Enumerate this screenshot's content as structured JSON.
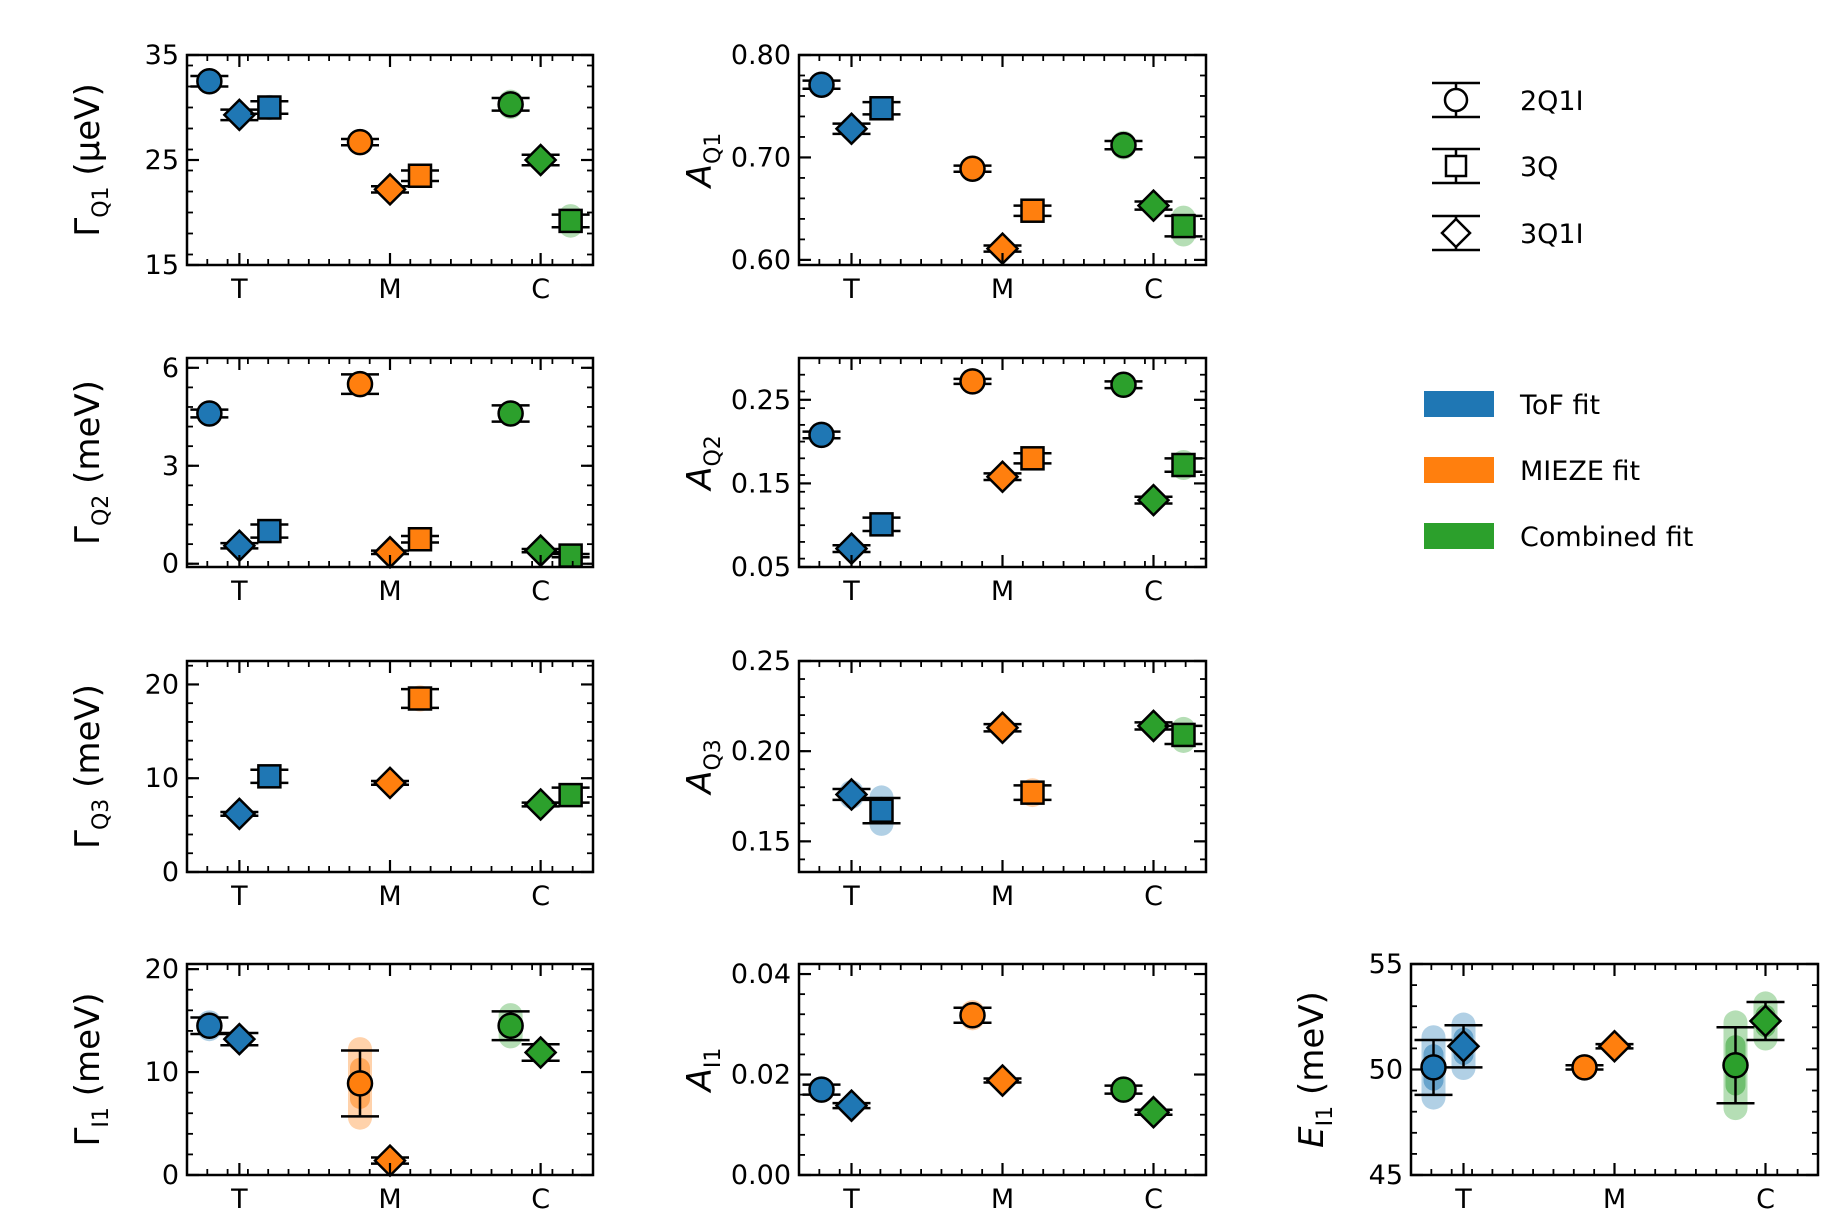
{
  "legend": {
    "markers": [
      {
        "label": "2Q1I",
        "shape": "circle"
      },
      {
        "label": "3Q",
        "shape": "square"
      },
      {
        "label": "3Q1I",
        "shape": "diamond"
      }
    ],
    "fits": [
      {
        "label": "ToF fit",
        "color": "#1f77b4"
      },
      {
        "label": "MIEZE fit",
        "color": "#ff7f0e"
      },
      {
        "label": "Combined fit",
        "color": "#2ca02c"
      }
    ]
  },
  "colors": {
    "T": "#1f77b4",
    "M": "#ff7f0e",
    "C": "#2ca02c"
  },
  "chart_data": [
    {
      "id": "gQ1",
      "type": "scatter",
      "ylabel_main": "Γ",
      "ylabel_sub": "Q1",
      "ylabel_unit": " (μeV)",
      "italic": false,
      "ylim": [
        15,
        35
      ],
      "yticks": [
        15,
        25,
        35
      ],
      "ytick_labels": [
        "15",
        "25",
        "35"
      ],
      "categories": [
        "T",
        "M",
        "C"
      ],
      "points": [
        {
          "cat": "T",
          "shape": "circle",
          "value": 32.5,
          "err": 0.5,
          "spread": 1.2
        },
        {
          "cat": "T",
          "shape": "diamond",
          "value": 29.3,
          "err": 0.5,
          "spread": 1.0
        },
        {
          "cat": "T",
          "shape": "square",
          "value": 30.0,
          "err": 0.6,
          "spread": 1.2
        },
        {
          "cat": "M",
          "shape": "circle",
          "value": 26.7,
          "err": 0.3,
          "spread": 0.8
        },
        {
          "cat": "M",
          "shape": "diamond",
          "value": 22.2,
          "err": 0.3,
          "spread": 0.8
        },
        {
          "cat": "M",
          "shape": "square",
          "value": 23.5,
          "err": 0.5,
          "spread": 0.8
        },
        {
          "cat": "C",
          "shape": "circle",
          "value": 30.3,
          "err": 0.6,
          "spread": 1.4
        },
        {
          "cat": "C",
          "shape": "diamond",
          "value": 25.0,
          "err": 0.5,
          "spread": 1.0
        },
        {
          "cat": "C",
          "shape": "square",
          "value": 19.2,
          "err": 0.6,
          "spread": 1.6
        }
      ]
    },
    {
      "id": "aQ1",
      "type": "scatter",
      "ylabel_main": "A",
      "ylabel_sub": "Q1",
      "ylabel_unit": "",
      "italic": true,
      "ylim": [
        0.595,
        0.8
      ],
      "yticks": [
        0.6,
        0.7,
        0.8
      ],
      "ytick_labels": [
        "0.60",
        "0.70",
        "0.80"
      ],
      "categories": [
        "T",
        "M",
        "C"
      ],
      "points": [
        {
          "cat": "T",
          "shape": "circle",
          "value": 0.771,
          "err": 0.004,
          "spread": 0.01
        },
        {
          "cat": "T",
          "shape": "diamond",
          "value": 0.728,
          "err": 0.005,
          "spread": 0.012
        },
        {
          "cat": "T",
          "shape": "square",
          "value": 0.748,
          "err": 0.006,
          "spread": 0.012
        },
        {
          "cat": "M",
          "shape": "circle",
          "value": 0.689,
          "err": 0.003,
          "spread": 0.008
        },
        {
          "cat": "M",
          "shape": "diamond",
          "value": 0.611,
          "err": 0.003,
          "spread": 0.008
        },
        {
          "cat": "M",
          "shape": "square",
          "value": 0.648,
          "err": 0.005,
          "spread": 0.01
        },
        {
          "cat": "C",
          "shape": "circle",
          "value": 0.712,
          "err": 0.004,
          "spread": 0.014
        },
        {
          "cat": "C",
          "shape": "diamond",
          "value": 0.653,
          "err": 0.004,
          "spread": 0.01
        },
        {
          "cat": "C",
          "shape": "square",
          "value": 0.633,
          "err": 0.01,
          "spread": 0.02
        }
      ]
    },
    {
      "id": "gQ2",
      "type": "scatter",
      "ylabel_main": "Γ",
      "ylabel_sub": "Q2",
      "ylabel_unit": " (meV)",
      "italic": false,
      "ylim": [
        -0.1,
        6.3
      ],
      "yticks": [
        0,
        3,
        6
      ],
      "ytick_labels": [
        "0",
        "3",
        "6"
      ],
      "categories": [
        "T",
        "M",
        "C"
      ],
      "points": [
        {
          "cat": "T",
          "shape": "circle",
          "value": 4.6,
          "err": 0.12,
          "spread": 0.3
        },
        {
          "cat": "T",
          "shape": "diamond",
          "value": 0.55,
          "err": 0.08,
          "spread": 0.15
        },
        {
          "cat": "T",
          "shape": "square",
          "value": 1.0,
          "err": 0.2,
          "spread": 0.3
        },
        {
          "cat": "M",
          "shape": "circle",
          "value": 5.5,
          "err": 0.3,
          "spread": 0.4
        },
        {
          "cat": "M",
          "shape": "diamond",
          "value": 0.35,
          "err": 0.05,
          "spread": 0.1
        },
        {
          "cat": "M",
          "shape": "square",
          "value": 0.75,
          "err": 0.1,
          "spread": 0.15
        },
        {
          "cat": "C",
          "shape": "circle",
          "value": 4.6,
          "err": 0.25,
          "spread": 0.4
        },
        {
          "cat": "C",
          "shape": "diamond",
          "value": 0.4,
          "err": 0.05,
          "spread": 0.1
        },
        {
          "cat": "C",
          "shape": "square",
          "value": 0.25,
          "err": 0.05,
          "spread": 0.1
        }
      ]
    },
    {
      "id": "aQ2",
      "type": "scatter",
      "ylabel_main": "A",
      "ylabel_sub": "Q2",
      "ylabel_unit": "",
      "italic": true,
      "ylim": [
        0.05,
        0.3
      ],
      "yticks": [
        0.05,
        0.15,
        0.25
      ],
      "ytick_labels": [
        "0.05",
        "0.15",
        "0.25"
      ],
      "categories": [
        "T",
        "M",
        "C"
      ],
      "points": [
        {
          "cat": "T",
          "shape": "circle",
          "value": 0.208,
          "err": 0.004,
          "spread": 0.008
        },
        {
          "cat": "T",
          "shape": "diamond",
          "value": 0.072,
          "err": 0.004,
          "spread": 0.008
        },
        {
          "cat": "T",
          "shape": "square",
          "value": 0.101,
          "err": 0.008,
          "spread": 0.012
        },
        {
          "cat": "M",
          "shape": "circle",
          "value": 0.272,
          "err": 0.003,
          "spread": 0.006
        },
        {
          "cat": "M",
          "shape": "diamond",
          "value": 0.158,
          "err": 0.004,
          "spread": 0.006
        },
        {
          "cat": "M",
          "shape": "square",
          "value": 0.18,
          "err": 0.006,
          "spread": 0.01
        },
        {
          "cat": "C",
          "shape": "circle",
          "value": 0.268,
          "err": 0.004,
          "spread": 0.01
        },
        {
          "cat": "C",
          "shape": "diamond",
          "value": 0.13,
          "err": 0.004,
          "spread": 0.01
        },
        {
          "cat": "C",
          "shape": "square",
          "value": 0.172,
          "err": 0.008,
          "spread": 0.018
        }
      ]
    },
    {
      "id": "gQ3",
      "type": "scatter",
      "ylabel_main": "Γ",
      "ylabel_sub": "Q3",
      "ylabel_unit": " (meV)",
      "italic": false,
      "ylim": [
        0,
        22.5
      ],
      "yticks": [
        0,
        10,
        20
      ],
      "ytick_labels": [
        "0",
        "10",
        "20"
      ],
      "categories": [
        "T",
        "M",
        "C"
      ],
      "points": [
        {
          "cat": "T",
          "shape": "diamond",
          "value": 6.2,
          "err": 0.2,
          "spread": 0.5
        },
        {
          "cat": "T",
          "shape": "square",
          "value": 10.2,
          "err": 0.7,
          "spread": 1.0
        },
        {
          "cat": "M",
          "shape": "diamond",
          "value": 9.5,
          "err": 0.2,
          "spread": 0.5
        },
        {
          "cat": "M",
          "shape": "square",
          "value": 18.5,
          "err": 1.0,
          "spread": 1.4
        },
        {
          "cat": "C",
          "shape": "diamond",
          "value": 7.2,
          "err": 0.2,
          "spread": 0.5
        },
        {
          "cat": "C",
          "shape": "square",
          "value": 8.2,
          "err": 0.8,
          "spread": 1.2
        }
      ]
    },
    {
      "id": "aQ3",
      "type": "scatter",
      "ylabel_main": "A",
      "ylabel_sub": "Q3",
      "ylabel_unit": "",
      "italic": true,
      "ylim": [
        0.133,
        0.25
      ],
      "yticks": [
        0.15,
        0.2,
        0.25
      ],
      "ytick_labels": [
        "0.15",
        "0.20",
        "0.25"
      ],
      "categories": [
        "T",
        "M",
        "C"
      ],
      "points": [
        {
          "cat": "T",
          "shape": "diamond",
          "value": 0.176,
          "err": 0.003,
          "spread": 0.008
        },
        {
          "cat": "T",
          "shape": "square",
          "value": 0.167,
          "err": 0.007,
          "spread": 0.014
        },
        {
          "cat": "M",
          "shape": "diamond",
          "value": 0.213,
          "err": 0.002,
          "spread": 0.006
        },
        {
          "cat": "M",
          "shape": "square",
          "value": 0.177,
          "err": 0.004,
          "spread": 0.008
        },
        {
          "cat": "C",
          "shape": "diamond",
          "value": 0.214,
          "err": 0.002,
          "spread": 0.006
        },
        {
          "cat": "C",
          "shape": "square",
          "value": 0.209,
          "err": 0.005,
          "spread": 0.01
        }
      ]
    },
    {
      "id": "gI1",
      "type": "scatter",
      "ylabel_main": "Γ",
      "ylabel_sub": "I1",
      "ylabel_unit": " (meV)",
      "italic": false,
      "ylim": [
        0,
        20.5
      ],
      "yticks": [
        0,
        10,
        20
      ],
      "ytick_labels": [
        "0",
        "10",
        "20"
      ],
      "categories": [
        "T",
        "M",
        "C"
      ],
      "points": [
        {
          "cat": "T",
          "shape": "circle",
          "value": 14.5,
          "err": 0.8,
          "spread": 1.5
        },
        {
          "cat": "T",
          "shape": "diamond",
          "value": 13.2,
          "err": 0.6,
          "spread": 1.2
        },
        {
          "cat": "M",
          "shape": "circle",
          "value": 8.9,
          "err": 3.2,
          "spread": 4.5
        },
        {
          "cat": "M",
          "shape": "diamond",
          "value": 1.4,
          "err": 0.3,
          "spread": 0.5
        },
        {
          "cat": "C",
          "shape": "circle",
          "value": 14.5,
          "err": 1.4,
          "spread": 2.2
        },
        {
          "cat": "C",
          "shape": "diamond",
          "value": 11.9,
          "err": 0.8,
          "spread": 1.2
        }
      ]
    },
    {
      "id": "aI1",
      "type": "scatter",
      "ylabel_main": "A",
      "ylabel_sub": "I1",
      "ylabel_unit": "",
      "italic": true,
      "ylim": [
        0,
        0.042
      ],
      "yticks": [
        0,
        0.02,
        0.04
      ],
      "ytick_labels": [
        "0.00",
        "0.02",
        "0.04"
      ],
      "categories": [
        "T",
        "M",
        "C"
      ],
      "points": [
        {
          "cat": "T",
          "shape": "circle",
          "value": 0.017,
          "err": 0.001,
          "spread": 0.0025
        },
        {
          "cat": "T",
          "shape": "diamond",
          "value": 0.0138,
          "err": 0.0005,
          "spread": 0.0015
        },
        {
          "cat": "M",
          "shape": "circle",
          "value": 0.0318,
          "err": 0.0015,
          "spread": 0.003
        },
        {
          "cat": "M",
          "shape": "diamond",
          "value": 0.0188,
          "err": 0.0004,
          "spread": 0.0012
        },
        {
          "cat": "C",
          "shape": "circle",
          "value": 0.017,
          "err": 0.0008,
          "spread": 0.0025
        },
        {
          "cat": "C",
          "shape": "diamond",
          "value": 0.0125,
          "err": 0.0005,
          "spread": 0.0015
        }
      ]
    },
    {
      "id": "eI1",
      "type": "scatter",
      "ylabel_main": "E",
      "ylabel_sub": "I1",
      "ylabel_unit": " (meV)",
      "italic": true,
      "ylim": [
        45,
        55
      ],
      "yticks": [
        45,
        50,
        55
      ],
      "ytick_labels": [
        "45",
        "50",
        "55"
      ],
      "categories": [
        "T",
        "M",
        "C"
      ],
      "points": [
        {
          "cat": "T",
          "shape": "circle",
          "value": 50.1,
          "err": 1.3,
          "spread": 2.0
        },
        {
          "cat": "T",
          "shape": "diamond",
          "value": 51.1,
          "err": 1.0,
          "spread": 1.6
        },
        {
          "cat": "M",
          "shape": "circle",
          "value": 50.1,
          "err": 0.1,
          "spread": 0.15
        },
        {
          "cat": "M",
          "shape": "diamond",
          "value": 51.1,
          "err": 0.1,
          "spread": 0.15
        },
        {
          "cat": "C",
          "shape": "circle",
          "value": 50.2,
          "err": 1.8,
          "spread": 2.6
        },
        {
          "cat": "C",
          "shape": "diamond",
          "value": 52.3,
          "err": 0.9,
          "spread": 1.4
        }
      ]
    }
  ]
}
